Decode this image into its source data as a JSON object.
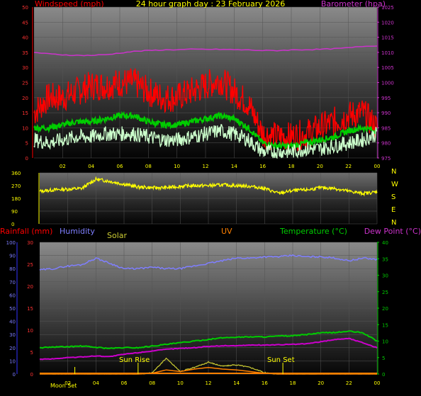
{
  "header": {
    "windspeed_label": "Windspeed (mph)",
    "title": "24 hour graph day : 23 February 2026",
    "barometer_label": "Barometer (hpa)"
  },
  "bottom_header": {
    "rainfall_label": "Rainfall (mm)",
    "humidity_label": "Humidity",
    "solar_label": "Solar",
    "uv_label": "UV",
    "temperature_label": "Temperature (°C)",
    "dewpoint_label": "Dew Point (°C)"
  },
  "direction_labels": [
    "N",
    "W",
    "S",
    "E",
    "N"
  ],
  "annotations": {
    "sun_rise": "Sun Rise",
    "sun_set": "Sun Set",
    "moon_set": "Moon Set"
  },
  "colors": {
    "wind_gust": "#ff0000",
    "wind_avg": "#00cc00",
    "wind_speed": "#ccffcc",
    "barometer": "#cc33cc",
    "direction": "#ffff00",
    "humidity": "#7f7fff",
    "temperature": "#00cc00",
    "dewpoint": "#cc00cc",
    "solar": "#cccc33",
    "uv": "#ff8000",
    "rain": "#3333ff"
  },
  "chart_data": [
    {
      "type": "line",
      "name": "wind-barometer",
      "x_ticks": [
        "02",
        "04",
        "06",
        "08",
        "10",
        "12",
        "14",
        "16",
        "18",
        "20",
        "22",
        "00"
      ],
      "y_left_ticks": [
        "0",
        "5",
        "10",
        "15",
        "20",
        "25",
        "30",
        "35",
        "40",
        "45",
        "50"
      ],
      "y_right_ticks": [
        "975",
        "980",
        "985",
        "990",
        "995",
        "1000",
        "1005",
        "1010",
        "1015",
        "1020",
        "1025"
      ],
      "ylim_left": [
        0,
        50
      ],
      "ylim_right": [
        975,
        1025
      ],
      "x_hours": [
        0,
        1,
        2,
        3,
        4,
        5,
        6,
        7,
        8,
        9,
        10,
        11,
        12,
        13,
        14,
        15,
        16,
        17,
        18,
        19,
        20,
        21,
        22,
        23,
        24
      ],
      "series": [
        {
          "key": "gust",
          "values": [
            15,
            20,
            20,
            22,
            24,
            24,
            25,
            25,
            22,
            20,
            20,
            22,
            24,
            26,
            22,
            18,
            8,
            7,
            7,
            8,
            10,
            12,
            14,
            15,
            10
          ]
        },
        {
          "key": "avg",
          "values": [
            10,
            10,
            11,
            12,
            12,
            13,
            14,
            14,
            12,
            11,
            11,
            12,
            13,
            14,
            13,
            10,
            5,
            4,
            4,
            5,
            6,
            7,
            9,
            10,
            9
          ]
        },
        {
          "key": "speed",
          "values": [
            6,
            5,
            6,
            7,
            7,
            8,
            8,
            8,
            7,
            6,
            6,
            7,
            8,
            9,
            8,
            6,
            2,
            2,
            2,
            3,
            3,
            4,
            5,
            6,
            8
          ]
        },
        {
          "key": "barometer",
          "values": [
            1010,
            1009.5,
            1009.2,
            1009,
            1009,
            1009.2,
            1009.8,
            1010.3,
            1010.6,
            1010.8,
            1010.9,
            1011,
            1011,
            1011,
            1010.9,
            1010.8,
            1010.6,
            1010.6,
            1010.8,
            1010.9,
            1011,
            1011.2,
            1011.5,
            1012,
            1012.2
          ]
        }
      ]
    },
    {
      "type": "line",
      "name": "wind-direction",
      "y_ticks": [
        "360",
        "270",
        "180",
        "90",
        "0"
      ],
      "ylim": [
        0,
        360
      ],
      "x_hours": [
        0,
        1,
        2,
        3,
        4,
        5,
        6,
        7,
        8,
        9,
        10,
        11,
        12,
        13,
        14,
        15,
        16,
        17,
        18,
        19,
        20,
        21,
        22,
        23,
        24
      ],
      "series": [
        {
          "key": "direction",
          "values": [
            230,
            240,
            245,
            250,
            315,
            300,
            280,
            260,
            255,
            255,
            265,
            270,
            270,
            275,
            270,
            265,
            250,
            215,
            235,
            240,
            255,
            250,
            230,
            215,
            225
          ]
        }
      ]
    },
    {
      "type": "line",
      "name": "weather",
      "y_humidity_ticks": [
        "0",
        "10",
        "20",
        "30",
        "40",
        "50",
        "60",
        "70",
        "80",
        "90",
        "100"
      ],
      "y_rain_ticks": [
        "0",
        "5",
        "10",
        "15",
        "20",
        "25",
        "30"
      ],
      "y_temp_ticks": [
        "0",
        "5",
        "10",
        "15",
        "20",
        "25",
        "30",
        "35",
        "40"
      ],
      "ylim_humidity": [
        0,
        100
      ],
      "ylim_rain": [
        0,
        30
      ],
      "ylim_temp": [
        0,
        40
      ],
      "x_ticks": [
        "02",
        "04",
        "06",
        "08",
        "10",
        "12",
        "14",
        "16",
        "18",
        "20",
        "22",
        "00"
      ],
      "x_hours": [
        0,
        1,
        2,
        3,
        4,
        5,
        6,
        7,
        8,
        9,
        10,
        11,
        12,
        13,
        14,
        15,
        16,
        17,
        18,
        19,
        20,
        21,
        22,
        23,
        24
      ],
      "series": [
        {
          "key": "humidity",
          "values": [
            79,
            80,
            82,
            83,
            88,
            84,
            80,
            80,
            81,
            80,
            80,
            82,
            84,
            86,
            88,
            88,
            89,
            89,
            90,
            89,
            89,
            88,
            86,
            88,
            87
          ]
        },
        {
          "key": "temperature",
          "values": [
            8,
            8.2,
            8.3,
            8.5,
            8.1,
            7.8,
            8,
            8,
            8.5,
            9,
            9.5,
            10,
            10.5,
            11,
            11.2,
            11.3,
            11.3,
            11.5,
            11.6,
            12,
            12.5,
            12.6,
            13,
            12.5,
            10
          ]
        },
        {
          "key": "dewpoint",
          "values": [
            4.5,
            4.6,
            5,
            5.2,
            5.5,
            5.3,
            6,
            6.5,
            7,
            7.5,
            7.8,
            8,
            8.4,
            8.6,
            8.6,
            8.8,
            8.8,
            8.9,
            9,
            9.2,
            9.8,
            10.5,
            10.8,
            9.5,
            8
          ]
        },
        {
          "key": "solar",
          "values": [
            0,
            0,
            0,
            0,
            0,
            0,
            0,
            0,
            10,
            120,
            20,
            50,
            90,
            60,
            70,
            50,
            10,
            0,
            0,
            0,
            0,
            0,
            0,
            0,
            0
          ]
        },
        {
          "key": "uv",
          "values": [
            0,
            0,
            0,
            0,
            0,
            0,
            0,
            0,
            0.1,
            0.5,
            0.3,
            0.6,
            0.8,
            0.6,
            0.5,
            0.3,
            0.1,
            0,
            0,
            0,
            0,
            0,
            0,
            0,
            0
          ]
        }
      ]
    }
  ]
}
